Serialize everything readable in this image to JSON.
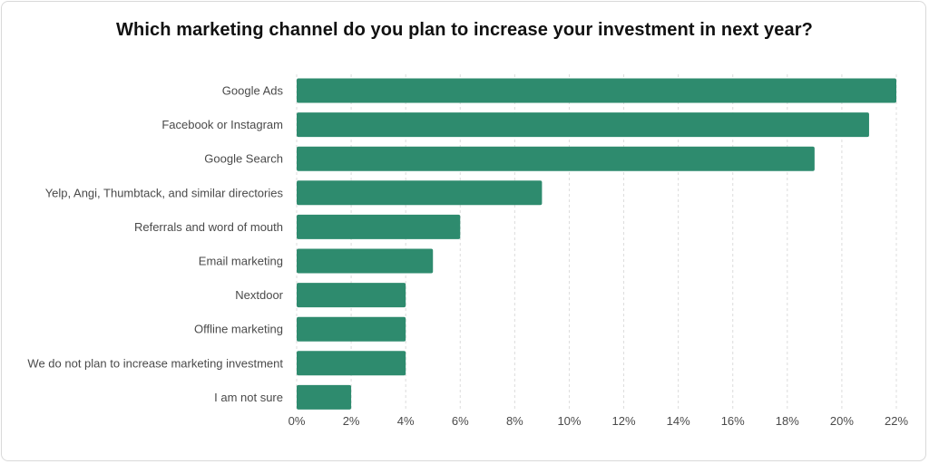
{
  "chart_data": {
    "type": "bar",
    "orientation": "horizontal",
    "title": "Which marketing channel do you plan to increase your investment in next year?",
    "categories": [
      "Google Ads",
      "Facebook or Instagram",
      "Google Search",
      "Yelp, Angi, Thumbtack, and similar directories",
      "Referrals and word of mouth",
      "Email marketing",
      "Nextdoor",
      "Offline marketing",
      "We do not plan to increase marketing investment",
      "I am not sure"
    ],
    "values": [
      22,
      21,
      19,
      9,
      6,
      5,
      4,
      4,
      4,
      2
    ],
    "xlim": [
      0,
      22
    ],
    "x_ticks": [
      "0%",
      "2%",
      "4%",
      "6%",
      "8%",
      "10%",
      "12%",
      "14%",
      "16%",
      "18%",
      "20%",
      "22%"
    ],
    "x_tick_values": [
      0,
      2,
      4,
      6,
      8,
      10,
      12,
      14,
      16,
      18,
      20,
      22
    ],
    "grid": "vertical dashed",
    "legend": "none",
    "bar_color": "#2e8b6e"
  }
}
